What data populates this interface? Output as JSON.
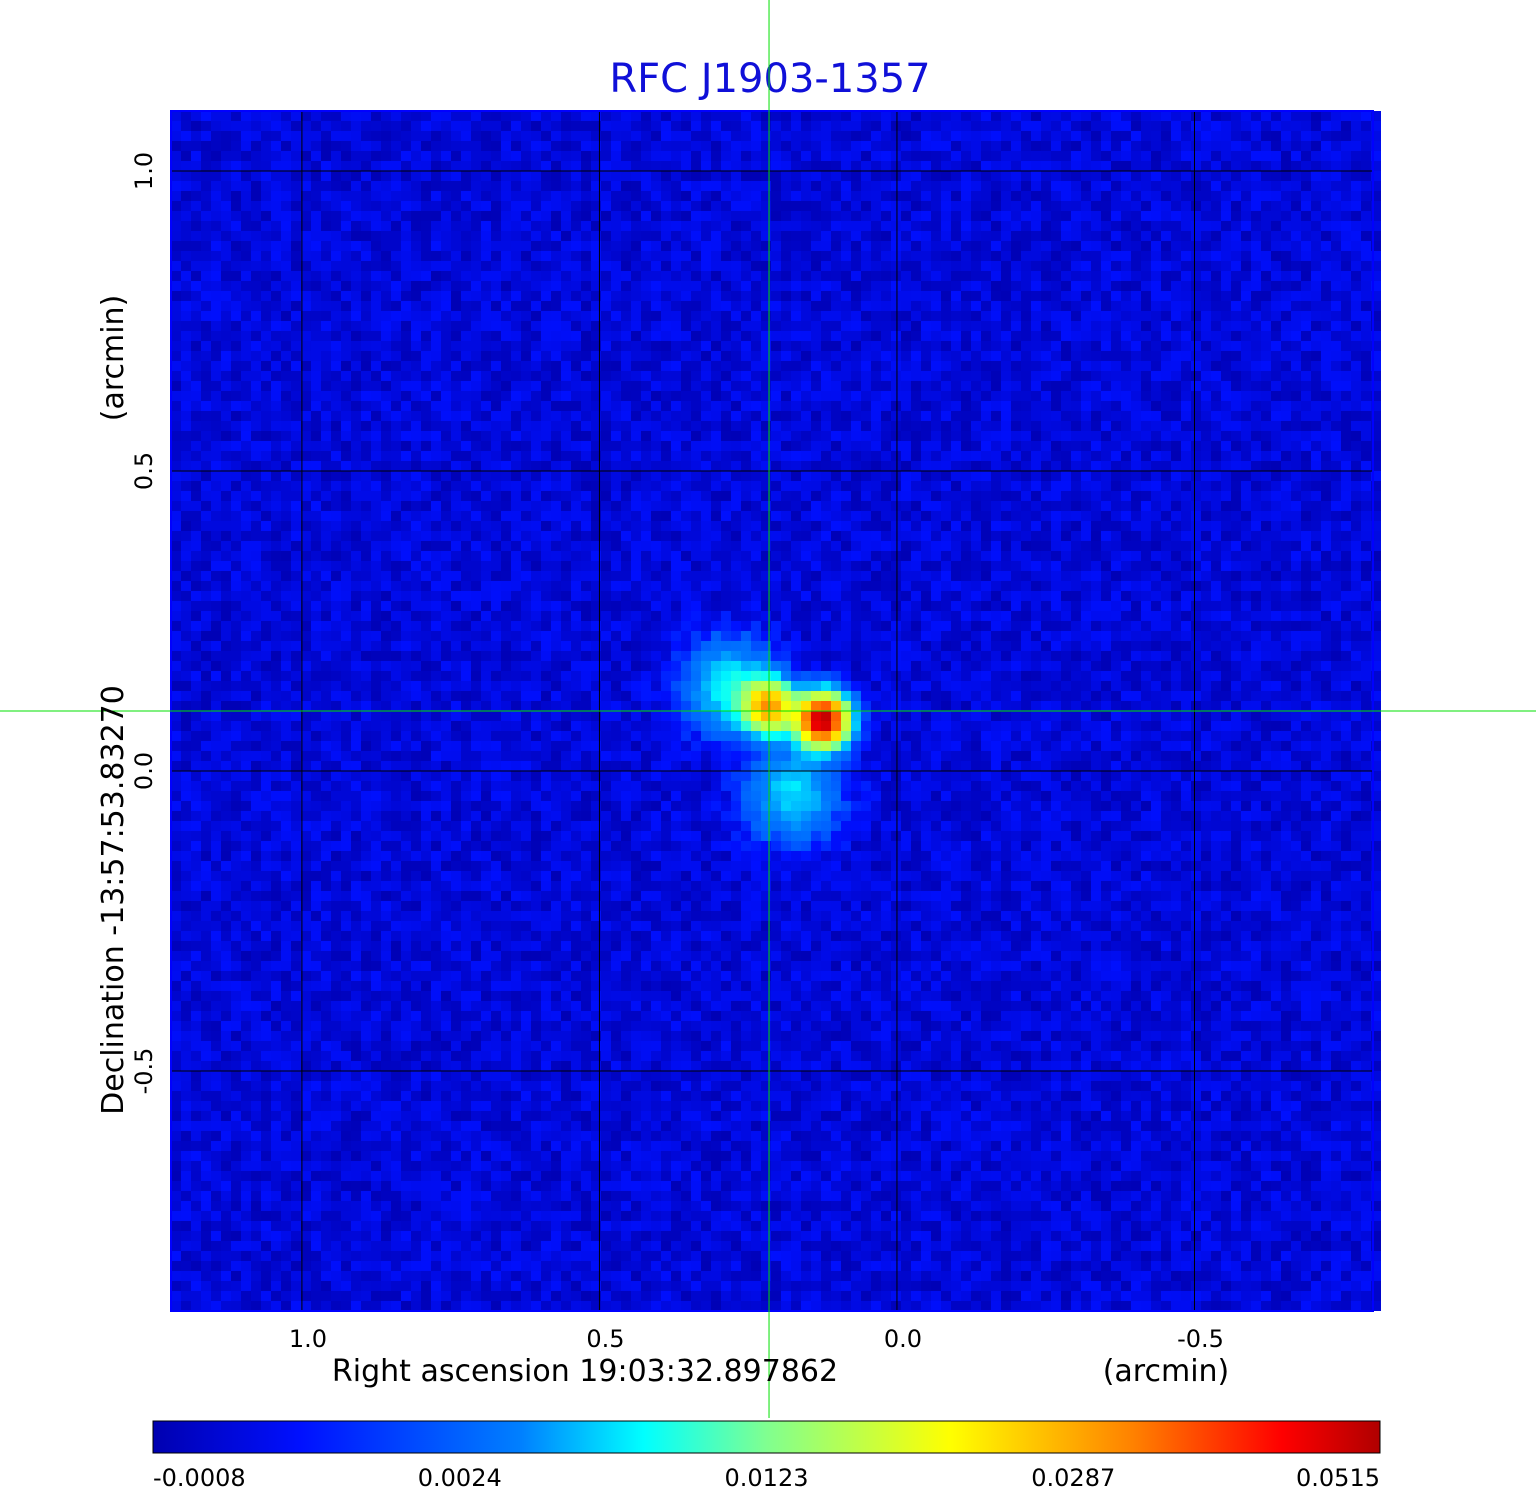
{
  "chart_data": {
    "type": "heatmap",
    "title": "RFC J1903-1357",
    "title_color": "#1010d8",
    "xlabel": "Right ascension  19:03:32.897862",
    "xunit": "(arcmin)",
    "ylabel": "Declination  -13:57:53.83270",
    "yunit": "(arcmin)",
    "xlim": [
      1.22,
      -0.8
    ],
    "ylim": [
      -0.9,
      1.1
    ],
    "xticks": [
      1.0,
      0.5,
      0.0,
      -0.5
    ],
    "xtick_labels": [
      "1.0",
      "0.5",
      "0.0",
      "-0.5"
    ],
    "yticks": [
      1.0,
      0.5,
      0.0,
      -0.5
    ],
    "ytick_labels": [
      "1.0",
      "0.5",
      "0.0",
      "-0.5"
    ],
    "grid": true,
    "crosshair": {
      "x": 0.215,
      "y": 0.1,
      "color": "#00e000"
    },
    "colormap": "jet",
    "background_value": 0.0,
    "colorbar": {
      "tick_values": [
        -0.0008,
        0.0024,
        0.0123,
        0.0287,
        0.0515
      ],
      "tick_labels": [
        "-0.0008",
        "0.0024",
        "0.0123",
        "0.0287",
        "0.0515"
      ]
    },
    "components": [
      {
        "name": "",
        "x": 0.28,
        "y": 0.14,
        "peak": 0.0085
      },
      {
        "name": "",
        "x": 0.215,
        "y": 0.107,
        "peak": 0.029
      },
      {
        "name": "",
        "x": 0.125,
        "y": 0.085,
        "peak": 0.0515
      },
      {
        "name": "",
        "x": 0.175,
        "y": -0.04,
        "peak": 0.0075
      }
    ]
  }
}
